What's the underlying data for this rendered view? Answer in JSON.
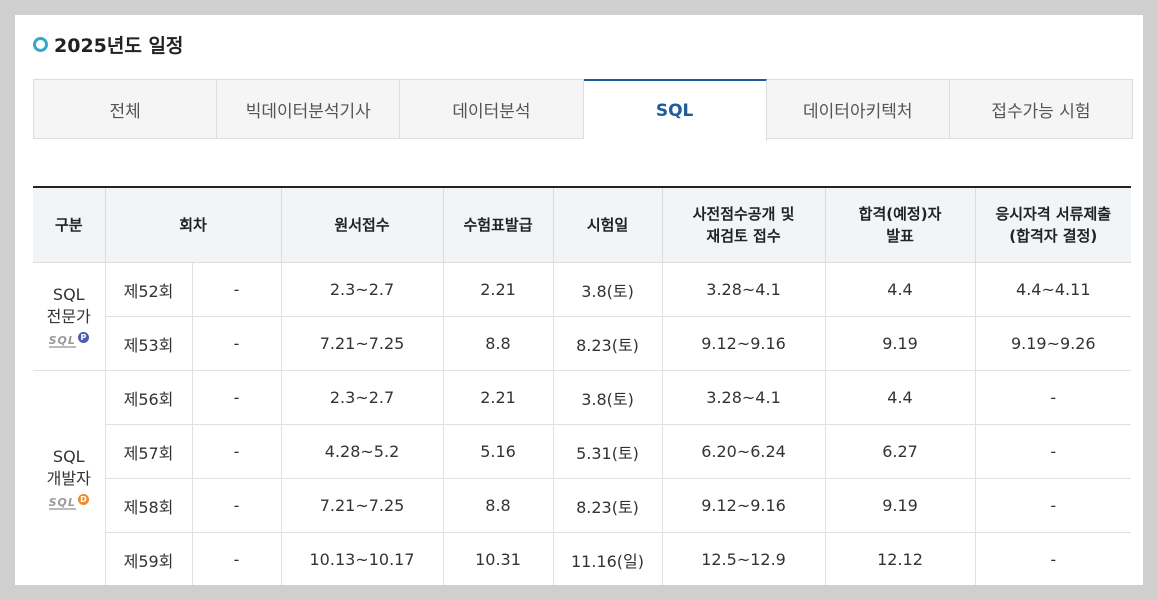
{
  "title": "2025년도 일정",
  "tabs": [
    "전체",
    "빅데이터분석기사",
    "데이터분석",
    "SQL",
    "데이터아키텍처",
    "접수가능 시험"
  ],
  "active_tab": 3,
  "table": {
    "headers": [
      [
        "구분"
      ],
      [
        "회차"
      ],
      [
        "원서접수"
      ],
      [
        "수험표발급"
      ],
      [
        "시험일"
      ],
      [
        "사전점수공개 및",
        "재검토 접수"
      ],
      [
        "합격(예정)자",
        "발표"
      ],
      [
        "응시자격 서류제출",
        "(합격자 결정)"
      ]
    ],
    "groups": [
      {
        "name": [
          "SQL",
          "전문가"
        ],
        "logo": "SQL",
        "badge": "P",
        "badge_color": "#4b5cb3",
        "rows": [
          [
            "제52회",
            "-",
            "2.3~2.7",
            "2.21",
            "3.8(토)",
            "3.28~4.1",
            "4.4",
            "4.4~4.11"
          ],
          [
            "제53회",
            "-",
            "7.21~7.25",
            "8.8",
            "8.23(토)",
            "9.12~9.16",
            "9.19",
            "9.19~9.26"
          ]
        ]
      },
      {
        "name": [
          "SQL",
          "개발자"
        ],
        "logo": "SQL",
        "badge": "D",
        "badge_color": "#f0892a",
        "rows": [
          [
            "제56회",
            "-",
            "2.3~2.7",
            "2.21",
            "3.8(토)",
            "3.28~4.1",
            "4.4",
            "-"
          ],
          [
            "제57회",
            "-",
            "4.28~5.2",
            "5.16",
            "5.31(토)",
            "6.20~6.24",
            "6.27",
            "-"
          ],
          [
            "제58회",
            "-",
            "7.21~7.25",
            "8.8",
            "8.23(토)",
            "9.12~9.16",
            "9.19",
            "-"
          ],
          [
            "제59회",
            "-",
            "10.13~10.17",
            "10.31",
            "11.16(일)",
            "12.5~12.9",
            "12.12",
            "-"
          ]
        ]
      }
    ]
  }
}
